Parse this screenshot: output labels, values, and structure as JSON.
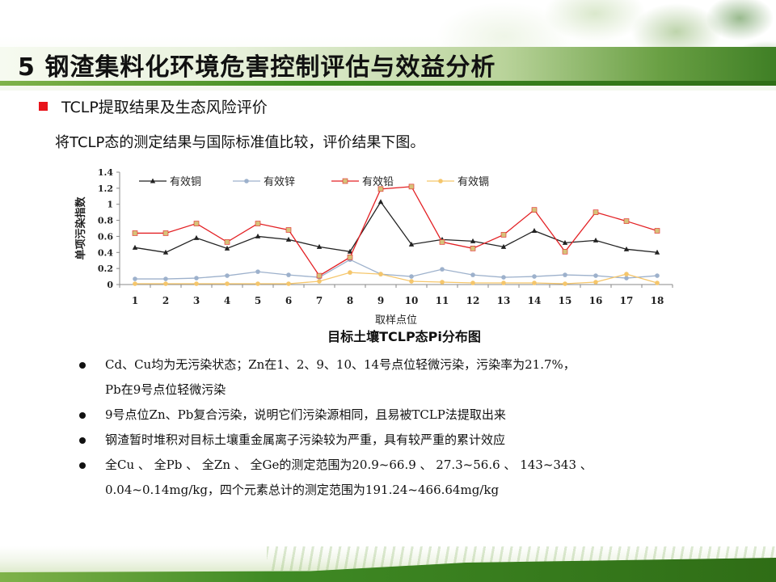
{
  "header": {
    "title": "5 钢渣集料化环境危害控制评估与效益分析"
  },
  "section": {
    "title": "TCLP提取结果及生态风险评价",
    "intro": "将TCLP态的测定结果与国际标准值比较，评价结果下图。"
  },
  "chart_data": {
    "type": "line",
    "title": "目标土壤TCLP态Pi分布图",
    "xlabel": "取样点位",
    "ylabel": "单项污染指数",
    "ylim": [
      0,
      1.4
    ],
    "yticks": [
      "0",
      "0.2",
      "0.4",
      "0.6",
      "0.8",
      "1",
      "1.2",
      "1.4"
    ],
    "categories": [
      "1",
      "2",
      "3",
      "4",
      "5",
      "6",
      "7",
      "8",
      "9",
      "10",
      "11",
      "12",
      "13",
      "14",
      "15",
      "16",
      "17",
      "18"
    ],
    "legend_position": "top",
    "series": [
      {
        "name": "有效铜",
        "color": "#222222",
        "marker": "triangle",
        "values": [
          0.46,
          0.4,
          0.58,
          0.45,
          0.6,
          0.56,
          0.47,
          0.41,
          1.03,
          0.5,
          0.56,
          0.54,
          0.47,
          0.67,
          0.52,
          0.55,
          0.44,
          0.4
        ]
      },
      {
        "name": "有效锌",
        "color": "#9db1cc",
        "marker": "circle",
        "values": [
          0.07,
          0.07,
          0.08,
          0.11,
          0.16,
          0.12,
          0.09,
          0.31,
          0.13,
          0.1,
          0.19,
          0.12,
          0.09,
          0.1,
          0.12,
          0.11,
          0.08,
          0.11
        ]
      },
      {
        "name": "有效铅",
        "color": "#e32024",
        "marker": "square",
        "values": [
          0.64,
          0.64,
          0.76,
          0.53,
          0.76,
          0.68,
          0.11,
          0.34,
          1.19,
          1.22,
          0.53,
          0.45,
          0.62,
          0.93,
          0.41,
          0.9,
          0.79,
          0.67
        ]
      },
      {
        "name": "有效镉",
        "color": "#f5c66b",
        "marker": "circle",
        "values": [
          0.01,
          0.01,
          0.01,
          0.01,
          0.01,
          0.01,
          0.04,
          0.15,
          0.13,
          0.04,
          0.03,
          0.02,
          0.02,
          0.02,
          0.01,
          0.03,
          0.13,
          0.02
        ]
      }
    ]
  },
  "bullets": [
    {
      "text": "Cd、Cu均为无污染状态；Zn在1、2、9、10、14号点位轻微污染，污染率为21.7%，",
      "cont": "Pb在9号点位轻微污染"
    },
    {
      "text": "9号点位Zn、Pb复合污染，说明它们污染源相同，且易被TCLP法提取出来",
      "cont": ""
    },
    {
      "text": "钢渣暂时堆积对目标土壤重金属离子污染较为严重，具有较严重的累计效应",
      "cont": ""
    },
    {
      "text": "全Cu 、 全Pb 、 全Zn 、 全Ge的测定范围为20.9~66.9 、 27.3~56.6 、 143~343 、",
      "cont": "0.04~0.14mg/kg，四个元素总计的测定范围为191.24~466.64mg/kg"
    }
  ]
}
